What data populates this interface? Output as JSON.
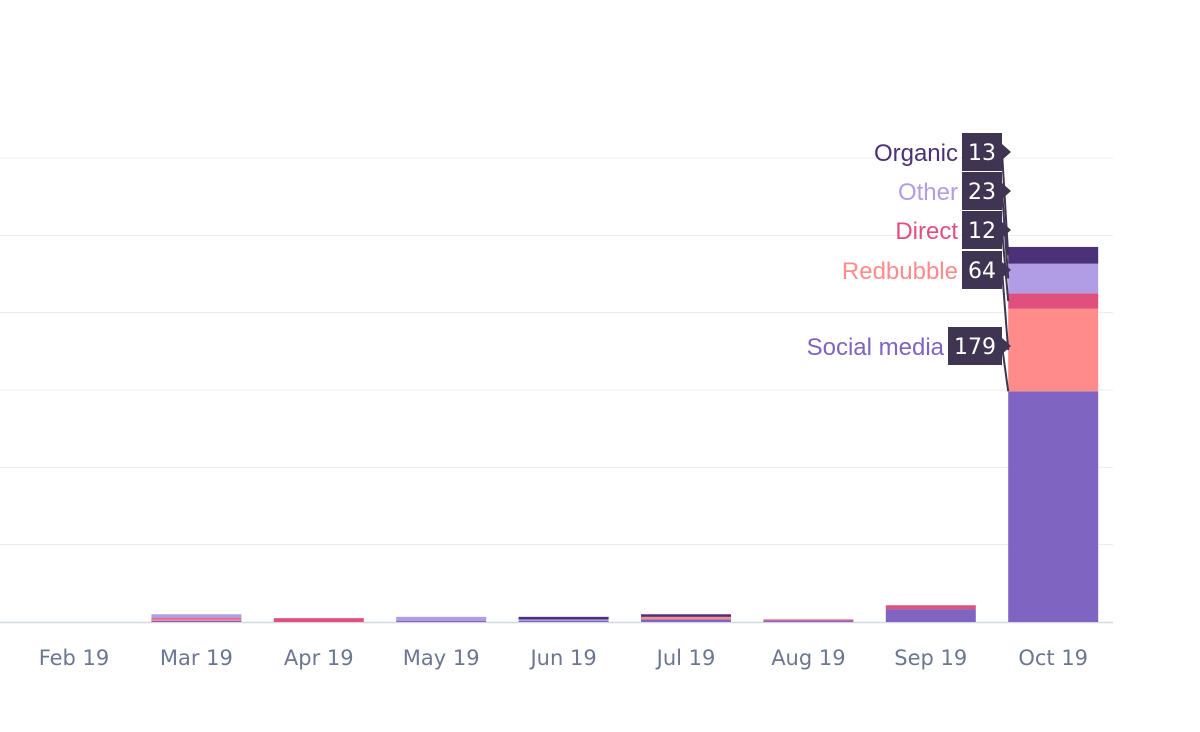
{
  "chart_data": {
    "type": "bar",
    "stacked": true,
    "categories": [
      "Feb 19",
      "Mar 19",
      "Apr 19",
      "May 19",
      "Jun 19",
      "Jul 19",
      "Aug 19",
      "Sep 19",
      "Oct 19"
    ],
    "series": [
      {
        "name": "Social media",
        "color": "#8064c2",
        "values": [
          0,
          1,
          0,
          1,
          1,
          2,
          1,
          10,
          179
        ]
      },
      {
        "name": "Redbubble",
        "color": "#ff8b8b",
        "values": [
          0,
          1,
          0,
          0,
          0,
          2,
          0,
          0,
          64
        ]
      },
      {
        "name": "Direct",
        "color": "#e0507d",
        "values": [
          0,
          1,
          3,
          0,
          0,
          0,
          1,
          3,
          12
        ]
      },
      {
        "name": "Other",
        "color": "#b19ce6",
        "values": [
          0,
          3,
          0,
          3,
          1,
          0,
          0,
          0,
          23
        ]
      },
      {
        "name": "Organic",
        "color": "#4b3178",
        "values": [
          0,
          0,
          0,
          0,
          2,
          2,
          0,
          0,
          13
        ]
      }
    ],
    "callouts": [
      {
        "name": "Organic",
        "value": "13",
        "color": "#4b3178"
      },
      {
        "name": "Other",
        "value": "23",
        "color": "#b19ce6"
      },
      {
        "name": "Direct",
        "value": "12",
        "color": "#e0507d"
      },
      {
        "name": "Redbubble",
        "value": "64",
        "color": "#ff8b8b"
      },
      {
        "name": "Social media",
        "value": "179",
        "color": "#8064c2"
      }
    ],
    "ylim": [
      0,
      360
    ],
    "gridlines": [
      60,
      120,
      180,
      240,
      300,
      360
    ],
    "grid": true,
    "title": "",
    "xlabel": "",
    "ylabel": ""
  }
}
